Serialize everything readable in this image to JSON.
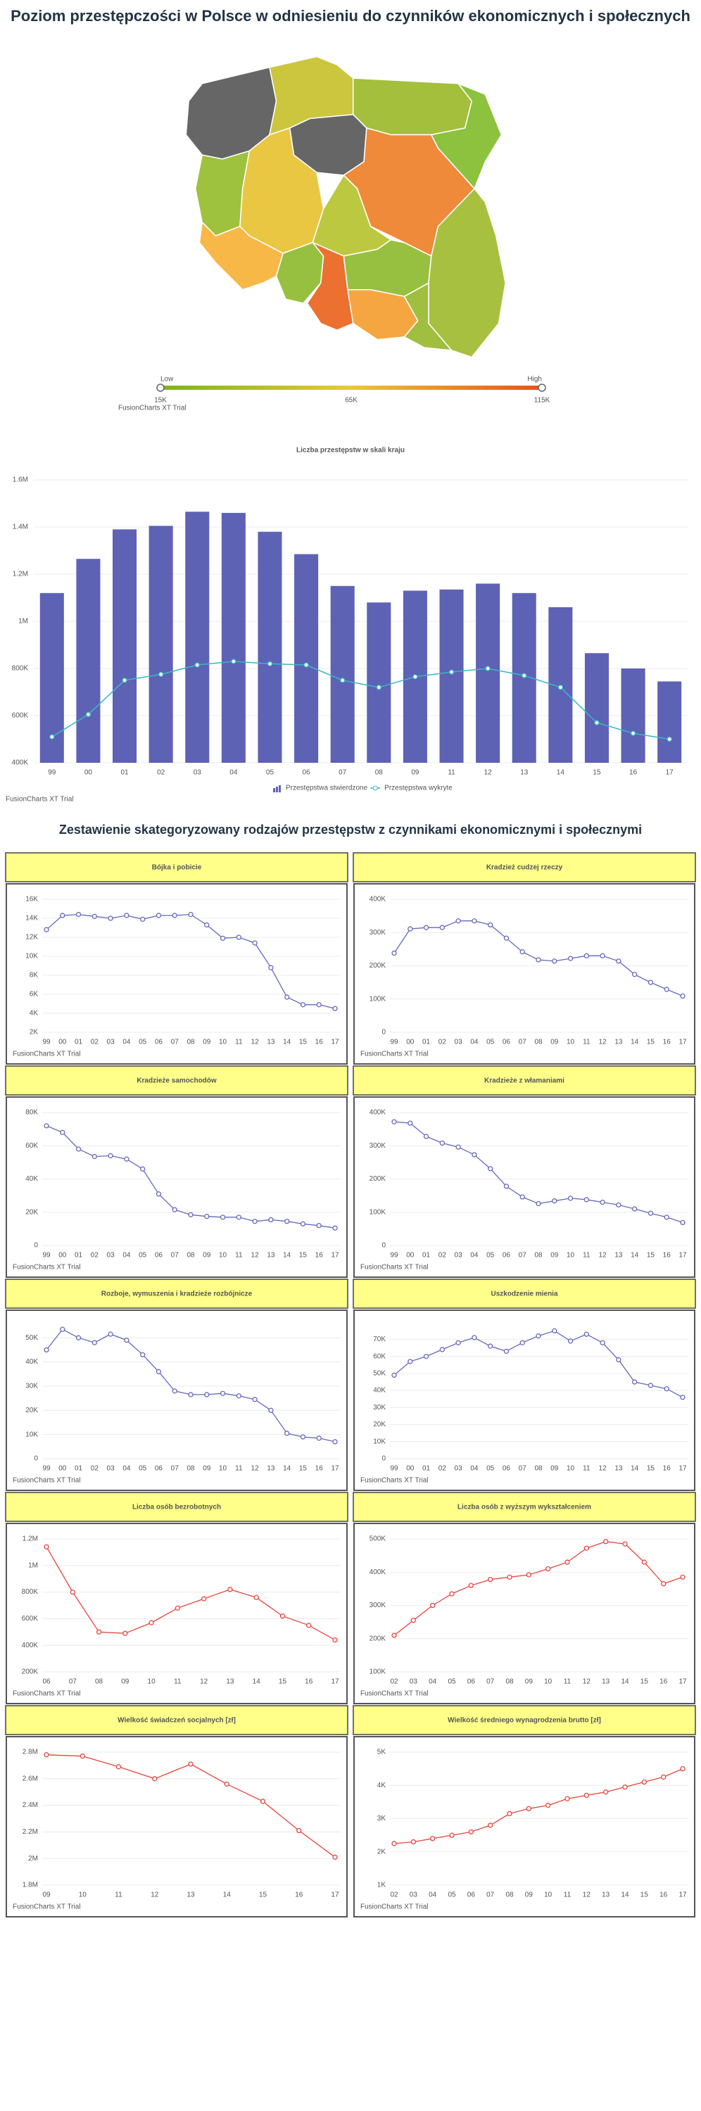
{
  "title": "Poziom przestępczości w Polsce w odniesieniu do czynników ekonomicznych i społecznych",
  "section_title": "Zestawienie skategoryzowany rodzajów przestępstw z czynnikami ekonomicznymi i społecznymi",
  "watermark": "FusionCharts XT Trial",
  "map": {
    "low_label": "Low",
    "high_label": "High",
    "range": [
      15000,
      115000
    ],
    "ticks": [
      {
        "value": 15000,
        "label": "15K"
      },
      {
        "value": 65000,
        "label": "65K"
      },
      {
        "value": 115000,
        "label": "115K"
      }
    ],
    "colors": [
      "#7cb518",
      "#e8c83a",
      "#e5531a"
    ]
  },
  "chart_data": [
    {
      "type": "combo",
      "title": "Liczba przestępstw w skali kraju",
      "categories": [
        "99",
        "00",
        "01",
        "02",
        "03",
        "04",
        "05",
        "06",
        "07",
        "08",
        "09",
        "11",
        "12",
        "13",
        "14",
        "15",
        "16",
        "17"
      ],
      "series": [
        {
          "name": "Przestępstwa stwierdzone",
          "type": "bar",
          "color": "#5d62b5",
          "values": [
            1120000,
            1265000,
            1390000,
            1405000,
            1465000,
            1460000,
            1380000,
            1285000,
            1150000,
            1080000,
            1130000,
            1135000,
            1160000,
            1120000,
            1060000,
            865000,
            800000,
            745000
          ]
        },
        {
          "name": "Przestępstwa wykryte",
          "type": "line",
          "color": "#3bb6c6",
          "values": [
            510000,
            605000,
            750000,
            775000,
            815000,
            830000,
            820000,
            815000,
            750000,
            720000,
            765000,
            785000,
            800000,
            770000,
            720000,
            570000,
            525000,
            500000
          ]
        }
      ],
      "ylim": [
        400000,
        1600000
      ],
      "yticks": [
        {
          "value": 400000,
          "label": "400K"
        },
        {
          "value": 600000,
          "label": "600K"
        },
        {
          "value": 800000,
          "label": "800K"
        },
        {
          "value": 1000000,
          "label": "1M"
        },
        {
          "value": 1200000,
          "label": "1.2M"
        },
        {
          "value": 1400000,
          "label": "1.4M"
        },
        {
          "value": 1600000,
          "label": "1.6M"
        }
      ],
      "grid": true
    },
    {
      "type": "line",
      "title": "Bójka i pobicie",
      "color": "#6468c0",
      "categories": [
        "99",
        "00",
        "01",
        "02",
        "03",
        "04",
        "05",
        "06",
        "07",
        "08",
        "09",
        "10",
        "11",
        "12",
        "13",
        "14",
        "15",
        "16",
        "17"
      ],
      "values": [
        12800,
        14300,
        14400,
        14200,
        14000,
        14300,
        13900,
        14300,
        14300,
        14400,
        13300,
        11900,
        12000,
        11400,
        8800,
        5700,
        4900,
        4900,
        4500
      ],
      "ylim": [
        2000,
        16000
      ],
      "yticks": [
        {
          "value": 2000,
          "label": "2K"
        },
        {
          "value": 4000,
          "label": "4K"
        },
        {
          "value": 6000,
          "label": "6K"
        },
        {
          "value": 8000,
          "label": "8K"
        },
        {
          "value": 10000,
          "label": "10K"
        },
        {
          "value": 12000,
          "label": "12K"
        },
        {
          "value": 14000,
          "label": "14K"
        },
        {
          "value": 16000,
          "label": "16K"
        }
      ],
      "grid": true
    },
    {
      "type": "line",
      "title": "Kradzież cudzej rzeczy",
      "color": "#6468c0",
      "categories": [
        "99",
        "00",
        "01",
        "02",
        "03",
        "04",
        "05",
        "06",
        "07",
        "08",
        "09",
        "10",
        "11",
        "12",
        "13",
        "14",
        "15",
        "16",
        "17"
      ],
      "values": [
        238000,
        311000,
        315000,
        315000,
        335000,
        335000,
        323000,
        283000,
        242000,
        218000,
        214000,
        222000,
        230000,
        230000,
        214000,
        174000,
        150000,
        129000,
        109000
      ],
      "ylim": [
        0,
        400000
      ],
      "yticks": [
        0,
        {
          "value": 100000,
          "label": "100K"
        },
        {
          "value": 200000,
          "label": "200K"
        },
        {
          "value": 300000,
          "label": "300K"
        },
        {
          "value": 400000,
          "label": "400K"
        }
      ],
      "grid": true
    },
    {
      "type": "line",
      "title": "Kradzieże samochodów",
      "color": "#6468c0",
      "categories": [
        "99",
        "00",
        "01",
        "02",
        "03",
        "04",
        "05",
        "06",
        "07",
        "08",
        "09",
        "10",
        "11",
        "12",
        "13",
        "14",
        "15",
        "16",
        "17"
      ],
      "values": [
        72000,
        68000,
        58000,
        53500,
        54000,
        52000,
        46000,
        31000,
        21500,
        18500,
        17500,
        17000,
        17000,
        14500,
        15500,
        14500,
        13000,
        12000,
        10500
      ],
      "ylim": [
        0,
        80000
      ],
      "yticks": [
        0,
        {
          "value": 20000,
          "label": "20K"
        },
        {
          "value": 40000,
          "label": "40K"
        },
        {
          "value": 60000,
          "label": "60K"
        },
        {
          "value": 80000,
          "label": "80K"
        }
      ],
      "grid": true
    },
    {
      "type": "line",
      "title": "Kradzieże z włamaniami",
      "color": "#6468c0",
      "categories": [
        "99",
        "00",
        "01",
        "02",
        "03",
        "04",
        "05",
        "06",
        "07",
        "08",
        "09",
        "10",
        "11",
        "12",
        "13",
        "14",
        "15",
        "16",
        "17"
      ],
      "values": [
        372000,
        368000,
        328000,
        308000,
        296000,
        273000,
        231000,
        178000,
        146000,
        126000,
        134000,
        142000,
        138000,
        130000,
        122000,
        110000,
        97000,
        85000,
        69000
      ],
      "ylim": [
        0,
        400000
      ],
      "yticks": [
        0,
        {
          "value": 100000,
          "label": "100K"
        },
        {
          "value": 200000,
          "label": "200K"
        },
        {
          "value": 300000,
          "label": "300K"
        },
        {
          "value": 400000,
          "label": "400K"
        }
      ],
      "grid": true
    },
    {
      "type": "line",
      "title": "Rozboje, wymuszenia i kradzieże rozbójnicze",
      "color": "#6468c0",
      "categories": [
        "99",
        "00",
        "01",
        "02",
        "03",
        "04",
        "05",
        "06",
        "07",
        "08",
        "09",
        "10",
        "11",
        "12",
        "13",
        "14",
        "15",
        "16",
        "17"
      ],
      "values": [
        45000,
        53500,
        50000,
        48000,
        51500,
        49000,
        43000,
        36000,
        28000,
        26500,
        26500,
        27000,
        26000,
        24500,
        20000,
        10500,
        9000,
        8500,
        7000
      ],
      "ylim": [
        0,
        55000
      ],
      "yticks": [
        0,
        {
          "value": 10000,
          "label": "10K"
        },
        {
          "value": 20000,
          "label": "20K"
        },
        {
          "value": 30000,
          "label": "30K"
        },
        {
          "value": 40000,
          "label": "40K"
        },
        {
          "value": 50000,
          "label": "50K"
        }
      ],
      "grid": true
    },
    {
      "type": "line",
      "title": "Uszkodzenie mienia",
      "color": "#6468c0",
      "categories": [
        "99",
        "00",
        "01",
        "02",
        "03",
        "04",
        "05",
        "06",
        "07",
        "08",
        "09",
        "10",
        "11",
        "12",
        "13",
        "14",
        "15",
        "16",
        "17"
      ],
      "values": [
        49000,
        57000,
        60000,
        64000,
        68000,
        71000,
        66000,
        63000,
        68000,
        72000,
        75000,
        69000,
        73000,
        68000,
        58000,
        45000,
        43000,
        41000,
        36000
      ],
      "ylim": [
        0,
        78000
      ],
      "yticks": [
        0,
        {
          "value": 10000,
          "label": "10K"
        },
        {
          "value": 20000,
          "label": "20K"
        },
        {
          "value": 30000,
          "label": "30K"
        },
        {
          "value": 40000,
          "label": "40K"
        },
        {
          "value": 50000,
          "label": "50K"
        },
        {
          "value": 60000,
          "label": "60K"
        },
        {
          "value": 70000,
          "label": "70K"
        }
      ],
      "grid": true
    },
    {
      "type": "line",
      "title": "Liczba osób bezrobotnych",
      "color": "#e8453c",
      "categories": [
        "06",
        "07",
        "08",
        "09",
        "10",
        "11",
        "12",
        "13",
        "14",
        "15",
        "16",
        "17"
      ],
      "values": [
        1140000,
        800000,
        500000,
        490000,
        570000,
        680000,
        750000,
        820000,
        760000,
        620000,
        550000,
        440000
      ],
      "ylim": [
        200000,
        1200000
      ],
      "yticks": [
        {
          "value": 200000,
          "label": "200K"
        },
        {
          "value": 400000,
          "label": "400K"
        },
        {
          "value": 600000,
          "label": "600K"
        },
        {
          "value": 800000,
          "label": "800K"
        },
        {
          "value": 1000000,
          "label": "1M"
        },
        {
          "value": 1200000,
          "label": "1.2M"
        }
      ],
      "grid": true
    },
    {
      "type": "line",
      "title": "Liczba osób z wyższym wykształceniem",
      "color": "#e8453c",
      "categories": [
        "02",
        "03",
        "04",
        "05",
        "06",
        "07",
        "08",
        "09",
        "10",
        "11",
        "12",
        "13",
        "14",
        "15",
        "16",
        "17"
      ],
      "values": [
        210000,
        255000,
        300000,
        335000,
        360000,
        378000,
        385000,
        392000,
        410000,
        430000,
        472000,
        492000,
        485000,
        430000,
        365000,
        385000
      ],
      "ylim": [
        100000,
        500000
      ],
      "yticks": [
        {
          "value": 100000,
          "label": "100K"
        },
        {
          "value": 200000,
          "label": "200K"
        },
        {
          "value": 300000,
          "label": "300K"
        },
        {
          "value": 400000,
          "label": "400K"
        },
        {
          "value": 500000,
          "label": "500K"
        }
      ],
      "grid": true
    },
    {
      "type": "line",
      "title": "Wielkość świadczeń socjalnych [zł]",
      "color": "#e8453c",
      "categories": [
        "09",
        "10",
        "11",
        "12",
        "13",
        "14",
        "15",
        "16",
        "17"
      ],
      "values": [
        2780000,
        2770000,
        2690000,
        2600000,
        2710000,
        2560000,
        2430000,
        2210000,
        2010000
      ],
      "ylim": [
        1800000,
        2800000
      ],
      "yticks": [
        {
          "value": 1800000,
          "label": "1.8M"
        },
        {
          "value": 2000000,
          "label": "2M"
        },
        {
          "value": 2200000,
          "label": "2.2M"
        },
        {
          "value": 2400000,
          "label": "2.4M"
        },
        {
          "value": 2600000,
          "label": "2.6M"
        },
        {
          "value": 2800000,
          "label": "2.8M"
        }
      ],
      "grid": true
    },
    {
      "type": "line",
      "title": "Wielkość średniego wynagrodzenia brutto [zł]",
      "color": "#e8453c",
      "categories": [
        "02",
        "03",
        "04",
        "05",
        "06",
        "07",
        "08",
        "09",
        "10",
        "11",
        "12",
        "13",
        "14",
        "15",
        "16",
        "17"
      ],
      "values": [
        2250,
        2300,
        2400,
        2500,
        2600,
        2800,
        3150,
        3300,
        3400,
        3600,
        3700,
        3800,
        3950,
        4100,
        4250,
        4500
      ],
      "ylim": [
        1000,
        5000
      ],
      "yticks": [
        {
          "value": 1000,
          "label": "1K"
        },
        {
          "value": 2000,
          "label": "2K"
        },
        {
          "value": 3000,
          "label": "3K"
        },
        {
          "value": 4000,
          "label": "4K"
        },
        {
          "value": 5000,
          "label": "5K"
        }
      ],
      "grid": true
    }
  ]
}
